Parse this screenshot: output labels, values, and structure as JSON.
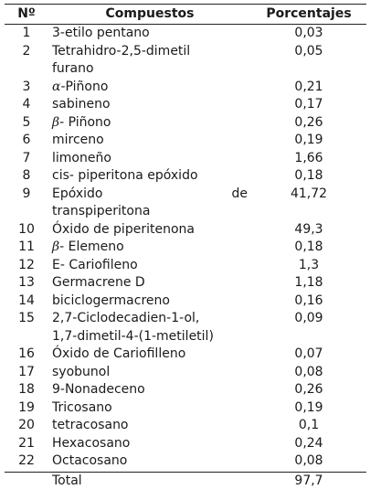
{
  "table": {
    "headers": {
      "num": "Nº",
      "compound": "Compuestos",
      "percent": "Porcentajes"
    },
    "rows": [
      {
        "num": "1",
        "compound": "3-etilo pentano",
        "percent": "0,03"
      },
      {
        "num": "2",
        "compound": "Tetrahidro-2,5-dimetil",
        "compound2": "furano",
        "percent": "0,05"
      },
      {
        "num": "3",
        "greek": "α",
        "compound": "-Piñono",
        "percent": "0,21"
      },
      {
        "num": "4",
        "compound": "sabineno",
        "percent": "0,17"
      },
      {
        "num": "5",
        "greek": "β",
        "compound": "- Piñono",
        "percent": "0,26"
      },
      {
        "num": "6",
        "compound": "mirceno",
        "percent": "0,19"
      },
      {
        "num": "7",
        "compound": "limoneño",
        "percent": "1,66"
      },
      {
        "num": "8",
        "compound": "cis- piperitona epóxido",
        "percent": "0,18"
      },
      {
        "num": "9",
        "compound": "Epóxido de",
        "compound2": "transpiperitona",
        "percent": "41,72"
      },
      {
        "num": "10",
        "compound": "Óxido de piperitenona",
        "percent": "49,3"
      },
      {
        "num": "11",
        "greek": "β",
        "compound": "- Elemeno",
        "percent": "0,18"
      },
      {
        "num": "12",
        "compound": "E- Cariofileno",
        "percent": "1,3"
      },
      {
        "num": "13",
        "compound": "Germacrene D",
        "percent": "1,18"
      },
      {
        "num": "14",
        "compound": "biciclogermacreno",
        "percent": "0,16"
      },
      {
        "num": "15",
        "compound": "2,7-Ciclodecadien-1-ol,",
        "compound2": "1,7-dimetil-4-(1-metiletil)",
        "percent": "0,09"
      },
      {
        "num": "16",
        "compound": "Óxido de Cariofilleno",
        "percent": "0,07"
      },
      {
        "num": "17",
        "compound": "syobunol",
        "percent": "0,08"
      },
      {
        "num": "18",
        "compound": "9-Nonadeceno",
        "percent": "0,26"
      },
      {
        "num": "19",
        "compound": "Tricosano",
        "percent": "0,19"
      },
      {
        "num": "20",
        "compound": "tetracosano",
        "percent": "0,1"
      },
      {
        "num": "21",
        "compound": "Hexacosano",
        "percent": "0,24"
      },
      {
        "num": "22",
        "compound": "Octacosano",
        "percent": "0,08"
      }
    ],
    "total": {
      "label": "Total",
      "percent": "97,7"
    }
  }
}
